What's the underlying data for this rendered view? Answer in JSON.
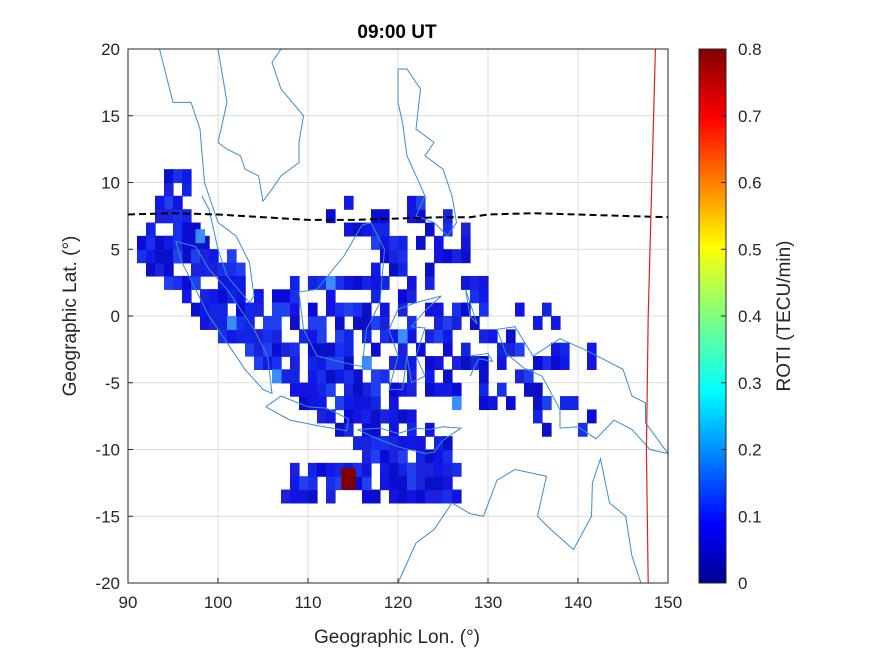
{
  "chart_data": {
    "type": "heatmap",
    "title": "09:00 UT",
    "xlabel": "Geographic Lon. (°)",
    "ylabel": "Geographic Lat. (°)",
    "xlim": [
      90,
      150
    ],
    "ylim": [
      -20,
      20
    ],
    "xticks": [
      "90",
      "100",
      "110",
      "120",
      "130",
      "140",
      "150"
    ],
    "yticks": [
      "20",
      "15",
      "10",
      "5",
      "0",
      "-5",
      "-10",
      "-15",
      "-20"
    ],
    "grid": true,
    "colorbar": {
      "label": "ROTI (TECU/min)",
      "range": [
        0,
        0.8
      ],
      "ticks": [
        "0.8",
        "0.7",
        "0.6",
        "0.5",
        "0.4",
        "0.3",
        "0.2",
        "0.1",
        "0"
      ],
      "colormap": "jet"
    },
    "notable_cell": {
      "lon": 114.5,
      "lat": -12.2,
      "roti": 0.8
    },
    "magnetic_equator": {
      "style": "black dashed",
      "points": [
        [
          90,
          7.6
        ],
        [
          95,
          7.7
        ],
        [
          100,
          7.6
        ],
        [
          105,
          7.4
        ],
        [
          110,
          7.2
        ],
        [
          115,
          7.2
        ],
        [
          120,
          7.3
        ],
        [
          125,
          7.4
        ],
        [
          128,
          7.4
        ],
        [
          130,
          7.6
        ],
        [
          135,
          7.7
        ],
        [
          140,
          7.6
        ],
        [
          145,
          7.5
        ],
        [
          150,
          7.4
        ]
      ]
    },
    "terminator": {
      "style": "red solid",
      "points": [
        [
          148.6,
          20
        ],
        [
          148.2,
          10
        ],
        [
          147.8,
          0
        ],
        [
          147.6,
          -10
        ],
        [
          147.8,
          -20
        ]
      ]
    },
    "colors": {
      "coastline": "#3b8fc8",
      "grid": "#dcdcdc",
      "low_roti": "#1010d0",
      "high_roti": "#800000"
    }
  }
}
